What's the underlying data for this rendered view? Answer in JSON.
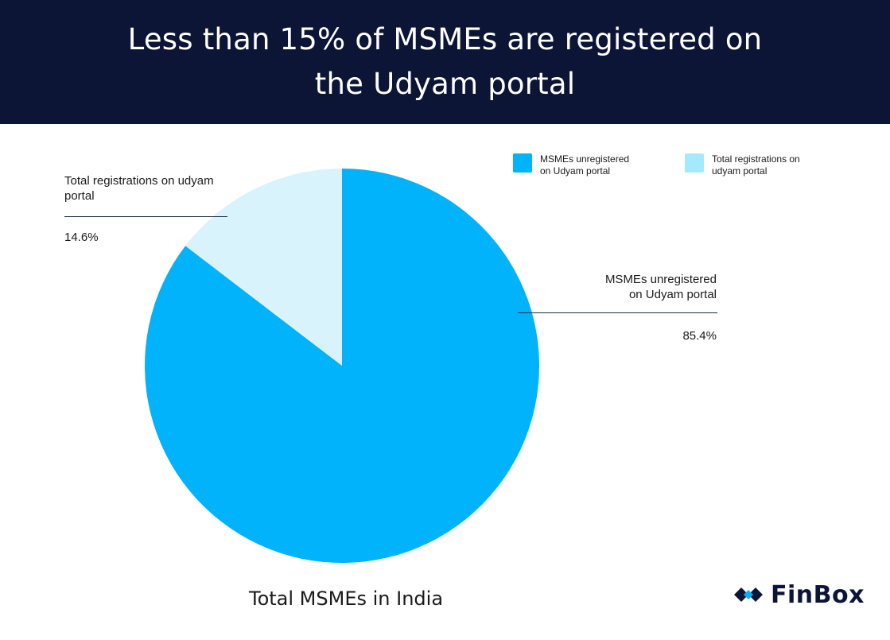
{
  "header": {
    "title": "Less than 15% of MSMEs are registered on the Udyam portal"
  },
  "chart_data": {
    "type": "pie",
    "title": "Total MSMEs in India",
    "slices": [
      {
        "label": "MSMEs unregistered on Udyam portal",
        "value": 85.4,
        "display": "85.4%",
        "color": "#00b3fa"
      },
      {
        "label": "Total registrations on udyam portal",
        "value": 14.6,
        "display": "14.6%",
        "color": "#d9f3fc"
      }
    ],
    "legend": {
      "placement": "top-right",
      "items": [
        {
          "label": "MSMEs unregistered on Udyam portal",
          "color": "#00b3fa"
        },
        {
          "label": "Total registrations on udyam portal",
          "color": "#a7e9fc"
        }
      ]
    },
    "callouts": {
      "registered": {
        "label": "Total registrations on udyam portal",
        "value": "14.6%"
      },
      "unregistered": {
        "label": "MSMEs unregistered on Udyam portal",
        "value": "85.4%"
      }
    }
  },
  "brand": {
    "name": "FinBox",
    "icon": "finbox-logo-icon",
    "color": "#0c1535",
    "accent": "#00b3fa"
  }
}
